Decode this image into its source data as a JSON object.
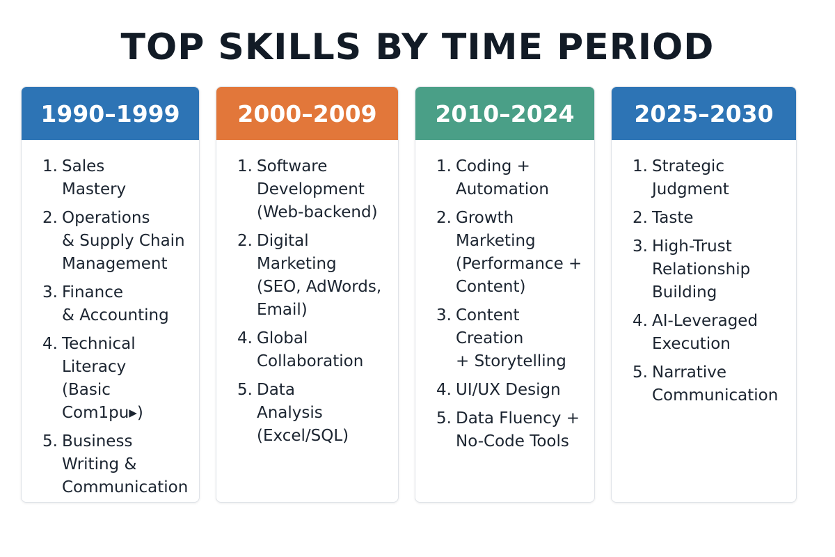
{
  "title": "TOP SKILLS BY TIME PERIOD",
  "colors": {
    "blue": "#2d74b5",
    "orange": "#e2773a",
    "teal": "#4a9f87"
  },
  "periods": [
    {
      "label": "1990–1999",
      "color": "#2d74b5",
      "skills": [
        {
          "num": "1.",
          "text": "Sales\nMastery"
        },
        {
          "num": "2.",
          "text": "Operations\n& Supply Chain\nManagement"
        },
        {
          "num": "3.",
          "text": "Finance\n& Accounting"
        },
        {
          "num": "4.",
          "text": "Technical\nLiteracy\n(Basic Com1pu▸)"
        },
        {
          "num": "5.",
          "text": "Business\nWriting &\nCommunication"
        }
      ]
    },
    {
      "label": "2000–2009",
      "color": "#e2773a",
      "skills": [
        {
          "num": "1.",
          "text": "Software\nDevelopment\n(Web-backend)"
        },
        {
          "num": "2.",
          "text": "Digital\nMarketing\n(SEO, AdWords,\nEmail)"
        },
        {
          "num": "4.",
          "text": "Global\nCollaboration"
        },
        {
          "num": "5.",
          "text": "Data\nAnalysis\n(Excel/SQL)"
        }
      ]
    },
    {
      "label": "2010–2024",
      "color": "#4a9f87",
      "skills": [
        {
          "num": "1.",
          "text": "Coding +\nAutomation"
        },
        {
          "num": "2.",
          "text": "Growth\nMarketing\n(Performance +\nContent)"
        },
        {
          "num": "3.",
          "text": "Content\nCreation\n+ Storytelling"
        },
        {
          "num": "4.",
          "text": "UI/UX Design"
        },
        {
          "num": "5.",
          "text": "Data Fluency +\nNo-Code Tools"
        }
      ]
    },
    {
      "label": "2025–2030",
      "color": "#2d74b5",
      "skills": [
        {
          "num": "1.",
          "text": "Strategic\nJudgment"
        },
        {
          "num": "2.",
          "text": "Taste"
        },
        {
          "num": "3.",
          "text": "High-Trust\nRelationship\nBuilding"
        },
        {
          "num": "4.",
          "text": "AI-Leveraged\nExecution"
        },
        {
          "num": "5.",
          "text": "Narrative\nCommunication"
        }
      ]
    }
  ]
}
